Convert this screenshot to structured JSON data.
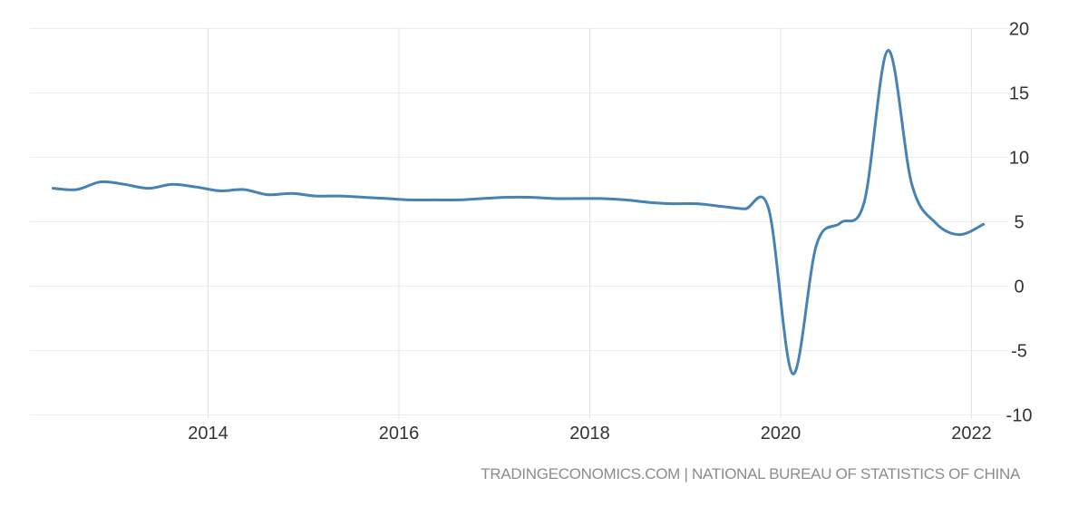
{
  "page": {
    "background": "#ffffff",
    "footer": {
      "text": "TRADINGECONOMICS.COM | NATIONAL BUREAU OF STATISTICS OF CHINA",
      "color": "#8c8c8c"
    }
  },
  "chart_data": {
    "type": "line",
    "title": "",
    "xlabel": "",
    "ylabel": "",
    "legend": "none",
    "grid": true,
    "gridline_color_horizontal": "#ececec",
    "gridline_color_vertical": "#e4e4e4",
    "line_color": "#4682b4",
    "tick_label_color": "#333333",
    "xlim": [
      2012.3,
      2022.4
    ],
    "ylim": [
      -10,
      20
    ],
    "x_tick_values": [
      2014,
      2016,
      2018,
      2020,
      2022
    ],
    "x_tick_labels": [
      "2014",
      "2016",
      "2018",
      "2020",
      "2022"
    ],
    "y_tick_values": [
      20,
      15,
      10,
      5,
      0,
      -5,
      -10
    ],
    "y_tick_labels": [
      "20",
      "15",
      "10",
      "5",
      "0",
      "-5",
      "-10"
    ],
    "series": [
      {
        "points": [
          [
            2012.375,
            7.6
          ],
          [
            2012.625,
            7.5
          ],
          [
            2012.875,
            8.1
          ],
          [
            2013.125,
            7.9
          ],
          [
            2013.375,
            7.6
          ],
          [
            2013.625,
            7.9
          ],
          [
            2013.875,
            7.7
          ],
          [
            2014.125,
            7.4
          ],
          [
            2014.375,
            7.5
          ],
          [
            2014.625,
            7.1
          ],
          [
            2014.875,
            7.2
          ],
          [
            2015.125,
            7.0
          ],
          [
            2015.375,
            7.0
          ],
          [
            2015.625,
            6.9
          ],
          [
            2015.875,
            6.8
          ],
          [
            2016.125,
            6.7
          ],
          [
            2016.375,
            6.7
          ],
          [
            2016.625,
            6.7
          ],
          [
            2016.875,
            6.8
          ],
          [
            2017.125,
            6.9
          ],
          [
            2017.375,
            6.9
          ],
          [
            2017.625,
            6.8
          ],
          [
            2017.875,
            6.8
          ],
          [
            2018.125,
            6.8
          ],
          [
            2018.375,
            6.7
          ],
          [
            2018.625,
            6.5
          ],
          [
            2018.875,
            6.4
          ],
          [
            2019.125,
            6.4
          ],
          [
            2019.375,
            6.2
          ],
          [
            2019.625,
            6.0
          ],
          [
            2019.875,
            6.0
          ],
          [
            2020.125,
            -6.8
          ],
          [
            2020.375,
            3.2
          ],
          [
            2020.625,
            4.9
          ],
          [
            2020.875,
            6.5
          ],
          [
            2021.125,
            18.3
          ],
          [
            2021.375,
            7.9
          ],
          [
            2021.625,
            4.9
          ],
          [
            2021.875,
            4.0
          ],
          [
            2022.125,
            4.8
          ]
        ]
      }
    ]
  }
}
